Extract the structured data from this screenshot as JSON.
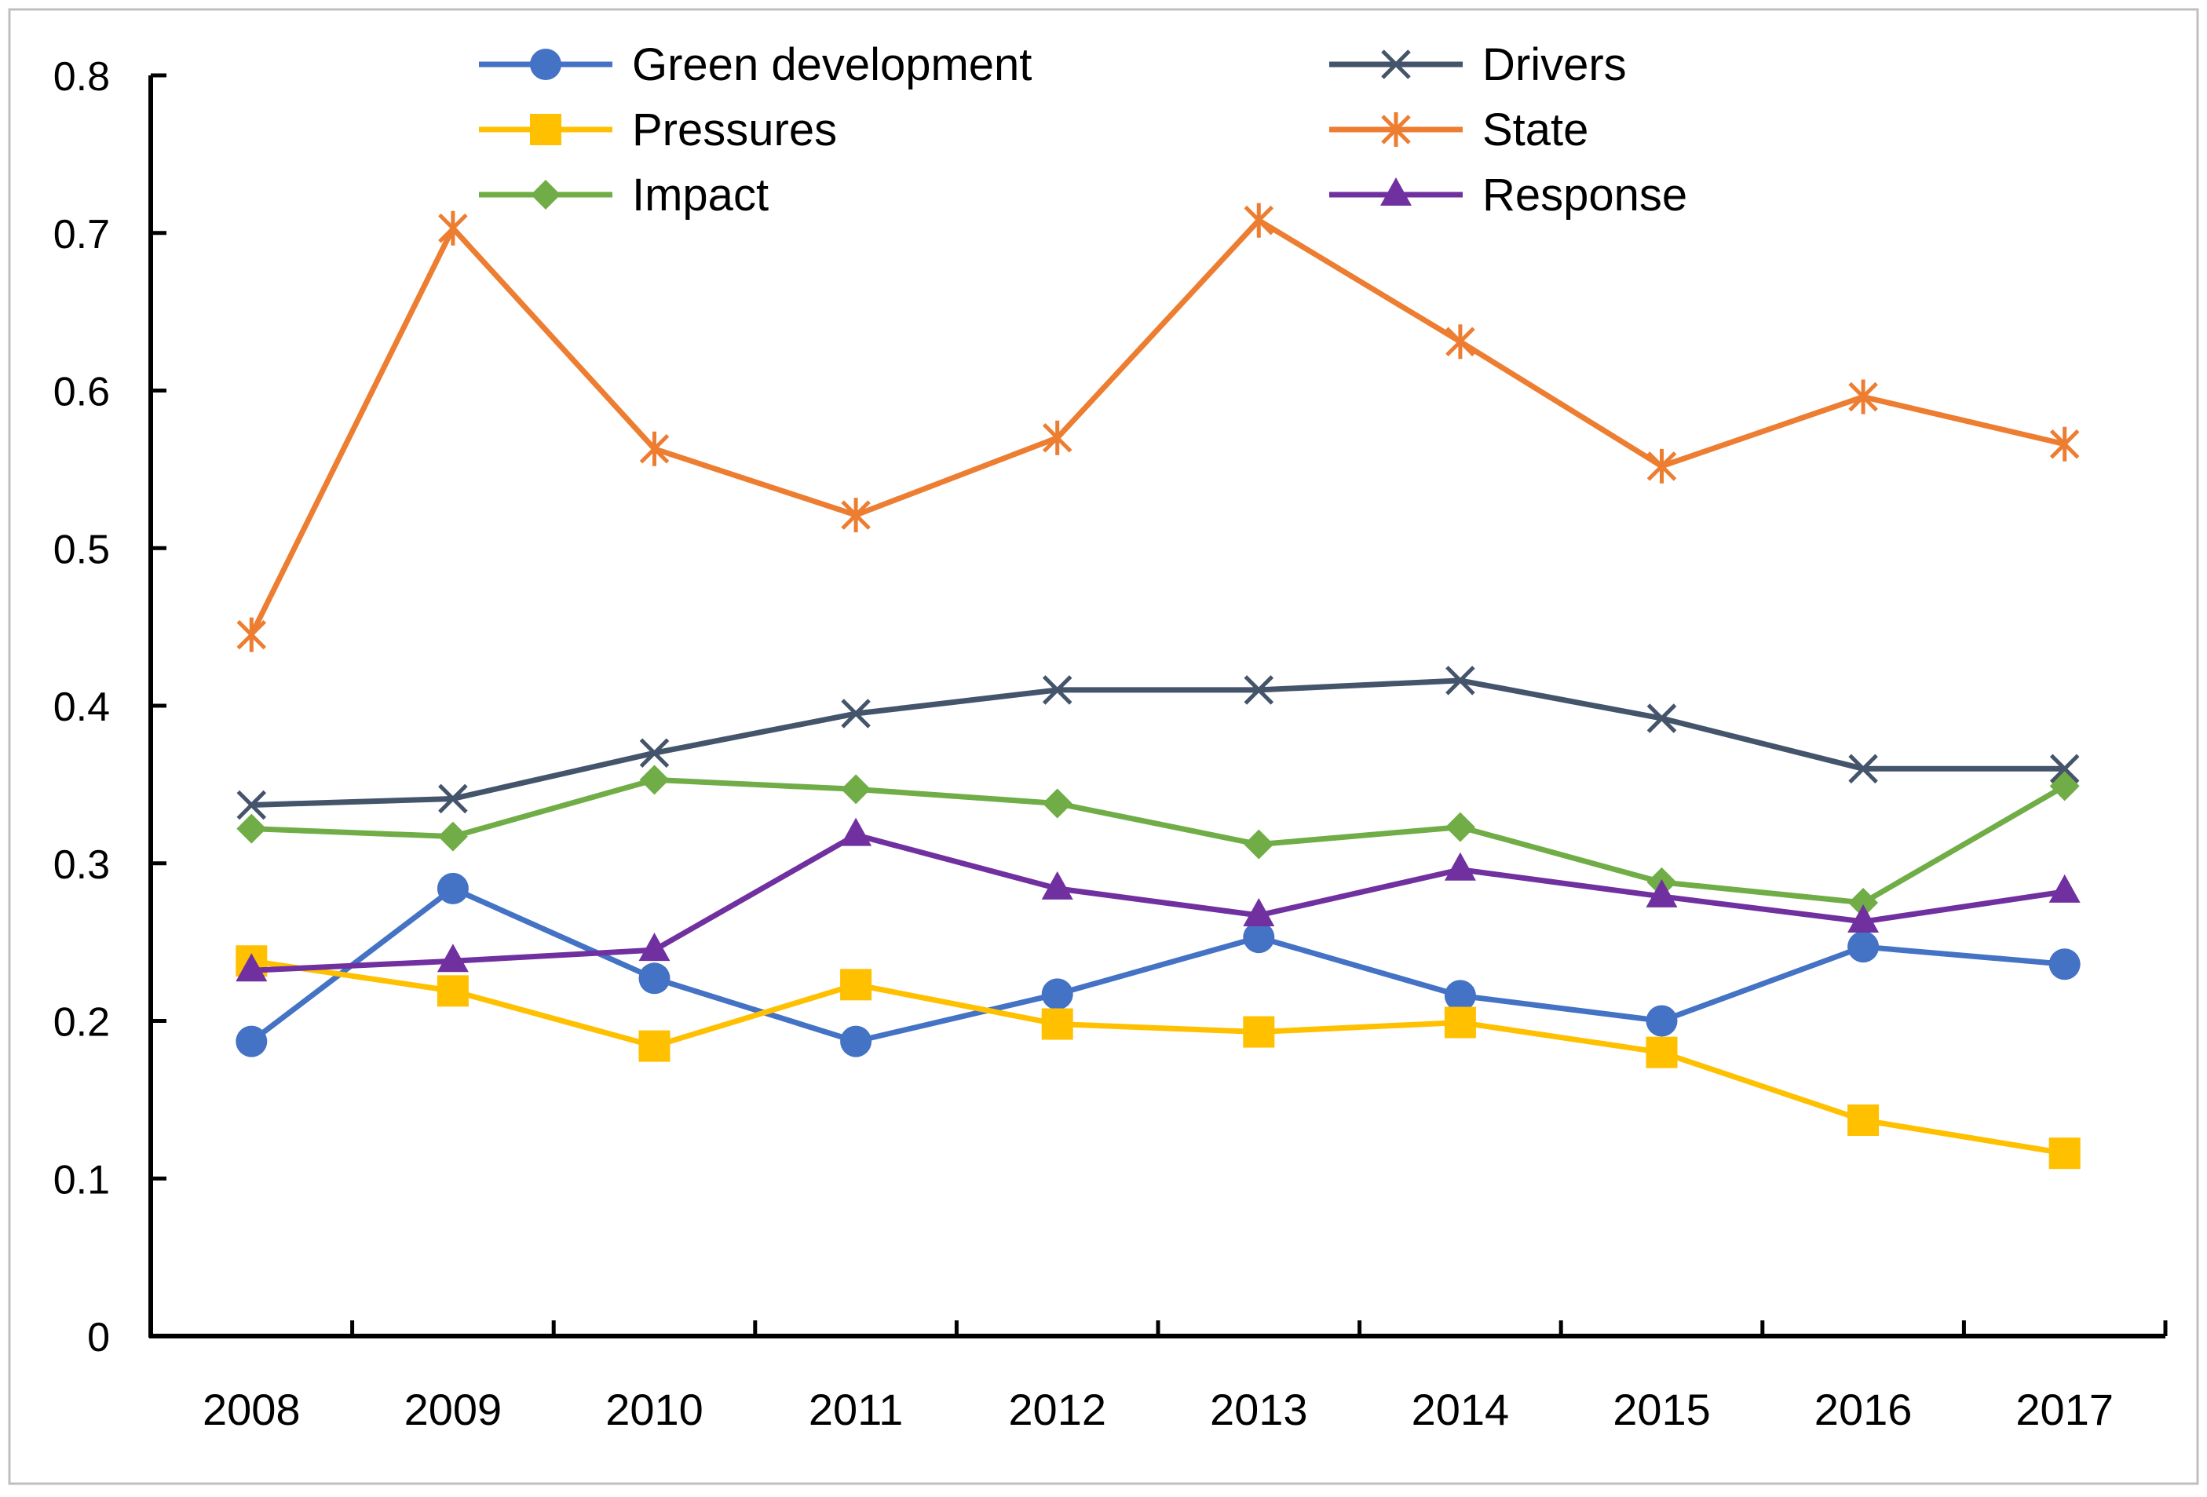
{
  "chart_data": {
    "type": "line",
    "title": "",
    "xlabel": "",
    "ylabel": "",
    "categories": [
      "2008",
      "2009",
      "2010",
      "2011",
      "2012",
      "2013",
      "2014",
      "2015",
      "2016",
      "2017"
    ],
    "ylim": [
      0,
      0.8
    ],
    "yticks": [
      "0",
      "0.1",
      "0.2",
      "0.3",
      "0.4",
      "0.5",
      "0.6",
      "0.7",
      "0.8"
    ],
    "grid": false,
    "legend_position": "top",
    "series": [
      {
        "name": "Green development",
        "color": "#4472C4",
        "marker": "circle",
        "values": [
          0.187,
          0.284,
          0.227,
          0.187,
          0.217,
          0.253,
          0.216,
          0.2,
          0.247,
          0.236
        ]
      },
      {
        "name": "Drivers",
        "color": "#44546A",
        "marker": "x",
        "values": [
          0.337,
          0.341,
          0.37,
          0.395,
          0.41,
          0.41,
          0.416,
          0.392,
          0.36,
          0.36
        ]
      },
      {
        "name": "Pressures",
        "color": "#FFC000",
        "marker": "square",
        "values": [
          0.238,
          0.219,
          0.184,
          0.223,
          0.198,
          0.193,
          0.199,
          0.18,
          0.137,
          0.116
        ]
      },
      {
        "name": "State",
        "color": "#ED7D31",
        "marker": "asterisk",
        "values": [
          0.445,
          0.703,
          0.563,
          0.521,
          0.57,
          0.708,
          0.631,
          0.552,
          0.596,
          0.566
        ]
      },
      {
        "name": "Impact",
        "color": "#70AD47",
        "marker": "diamond",
        "values": [
          0.322,
          0.317,
          0.353,
          0.347,
          0.338,
          0.312,
          0.323,
          0.288,
          0.275,
          0.349
        ]
      },
      {
        "name": "Response",
        "color": "#7030A0",
        "marker": "triangle",
        "values": [
          0.232,
          0.238,
          0.245,
          0.318,
          0.284,
          0.267,
          0.296,
          0.279,
          0.263,
          0.282
        ]
      }
    ]
  }
}
